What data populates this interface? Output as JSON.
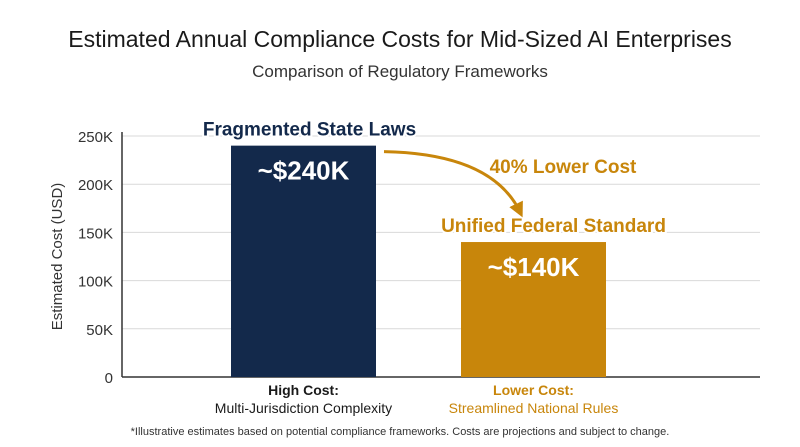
{
  "title": "Estimated Annual Compliance Costs for Mid-Sized AI Enterprises",
  "subtitle": "Comparison of Regulatory Frameworks",
  "footnote": "*Illustrative estimates based on potential compliance frameworks. Costs are projections and subject to change.",
  "colors": {
    "navy": "#13294b",
    "gold": "#c8860b",
    "axis": "#333333",
    "grid": "#d9d9d9"
  },
  "chart_data": {
    "type": "bar",
    "ylabel": "Estimated Cost (USD)",
    "ylim": [
      0,
      250000
    ],
    "yticks": [
      {
        "value": 0,
        "label": "0"
      },
      {
        "value": 50000,
        "label": "50K"
      },
      {
        "value": 100000,
        "label": "100K"
      },
      {
        "value": 150000,
        "label": "150K"
      },
      {
        "value": 200000,
        "label": "200K"
      },
      {
        "value": 250000,
        "label": "250K"
      }
    ],
    "grid": true,
    "bars": [
      {
        "value": 240000,
        "value_label": "~$240K",
        "title": "Fragmented State Laws",
        "category_line1": "High Cost:",
        "category_line2": "Multi-Jurisdiction Complexity",
        "color": "#13294b",
        "title_color": "#13294b",
        "category_color": "#1a1a1a"
      },
      {
        "value": 140000,
        "value_label": "~$140K",
        "title": "Unified Federal Standard",
        "category_line1": "Lower Cost:",
        "category_line2": "Streamlined National Rules",
        "color": "#c8860b",
        "title_color": "#c8860b",
        "category_color": "#c8860b"
      }
    ],
    "annotation": "40% Lower Cost"
  }
}
